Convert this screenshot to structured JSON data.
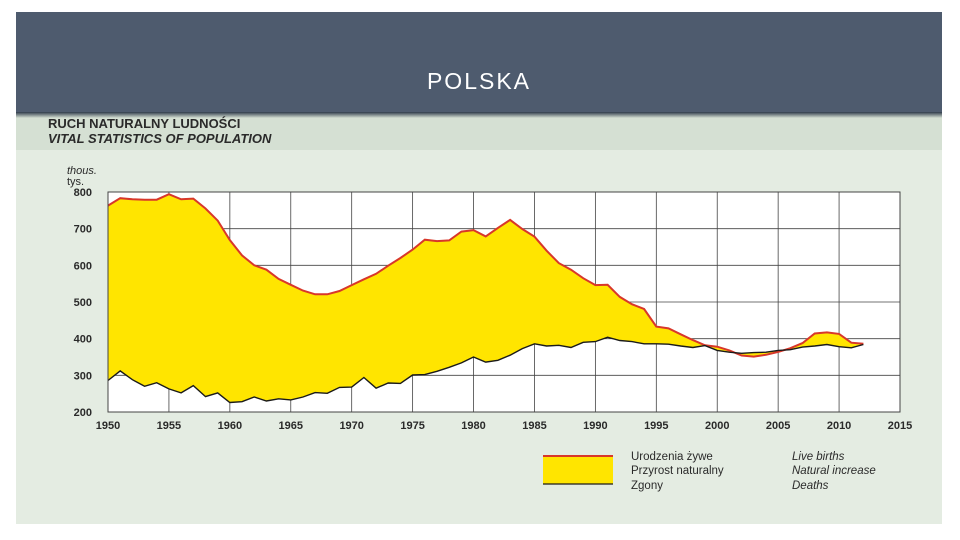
{
  "slide": {
    "title": "POLSKA"
  },
  "chart_data": {
    "type": "area",
    "title_pl": "RUCH NATURALNY LUDNOŚCI",
    "title_en": "VITAL STATISTICS OF POPULATION",
    "ylabel_en": "thous.",
    "ylabel_pl": "tys.",
    "ylim": [
      200,
      800
    ],
    "yticks": [
      200,
      300,
      400,
      500,
      600,
      700,
      800
    ],
    "xlim": [
      1950,
      2015
    ],
    "xticks": [
      1950,
      1955,
      1960,
      1965,
      1970,
      1975,
      1980,
      1985,
      1990,
      1995,
      2000,
      2005,
      2010,
      2015
    ],
    "grid": true,
    "colors": {
      "births_line": "#d8372a",
      "deaths_line": "#1a1a1a",
      "fill": "#ffe500",
      "plot_bg": "#ffffff",
      "grid": "#444444"
    },
    "series": [
      {
        "name": "Urodzenia żywe",
        "name_en": "Live births",
        "x": [
          1950,
          1951,
          1952,
          1953,
          1954,
          1955,
          1956,
          1957,
          1958,
          1959,
          1960,
          1961,
          1962,
          1963,
          1964,
          1965,
          1966,
          1967,
          1968,
          1969,
          1970,
          1971,
          1972,
          1973,
          1974,
          1975,
          1976,
          1977,
          1978,
          1979,
          1980,
          1981,
          1982,
          1983,
          1984,
          1985,
          1986,
          1987,
          1988,
          1989,
          1990,
          1991,
          1992,
          1993,
          1994,
          1995,
          1996,
          1997,
          1998,
          1999,
          2000,
          2001,
          2002,
          2003,
          2004,
          2005,
          2006,
          2007,
          2008,
          2009,
          2010,
          2011,
          2012
        ],
        "values": [
          763,
          783,
          780,
          779,
          779,
          794,
          780,
          782,
          755,
          722,
          669,
          627,
          600,
          588,
          563,
          547,
          531,
          521,
          521,
          530,
          546,
          562,
          577,
          599,
          620,
          643,
          670,
          666,
          668,
          692,
          696,
          679,
          702,
          724,
          699,
          678,
          640,
          606,
          588,
          565,
          546,
          547,
          514,
          494,
          481,
          433,
          428,
          412,
          396,
          382,
          378,
          368,
          354,
          351,
          356,
          364,
          374,
          388,
          414,
          417,
          413,
          389,
          386
        ]
      },
      {
        "name": "Zgony",
        "name_en": "Deaths",
        "x": [
          1950,
          1951,
          1952,
          1953,
          1954,
          1955,
          1956,
          1957,
          1958,
          1959,
          1960,
          1961,
          1962,
          1963,
          1964,
          1965,
          1966,
          1967,
          1968,
          1969,
          1970,
          1971,
          1972,
          1973,
          1974,
          1975,
          1976,
          1977,
          1978,
          1979,
          1980,
          1981,
          1982,
          1983,
          1984,
          1985,
          1986,
          1987,
          1988,
          1989,
          1990,
          1991,
          1992,
          1993,
          1994,
          1995,
          1996,
          1997,
          1998,
          1999,
          2000,
          2001,
          2002,
          2003,
          2004,
          2005,
          2006,
          2007,
          2008,
          2009,
          2010,
          2011,
          2012
        ],
        "values": [
          286,
          312,
          288,
          270,
          280,
          263,
          252,
          272,
          242,
          252,
          226,
          228,
          241,
          230,
          236,
          233,
          241,
          253,
          251,
          267,
          268,
          294,
          265,
          279,
          278,
          301,
          302,
          311,
          322,
          334,
          350,
          336,
          341,
          355,
          373,
          386,
          380,
          382,
          376,
          390,
          392,
          404,
          395,
          392,
          386,
          386,
          385,
          380,
          376,
          381,
          368,
          363,
          360,
          362,
          363,
          368,
          370,
          377,
          380,
          384,
          378,
          375,
          384
        ]
      },
      {
        "name": "Przyrost naturalny",
        "name_en": "Natural increase"
      }
    ]
  }
}
